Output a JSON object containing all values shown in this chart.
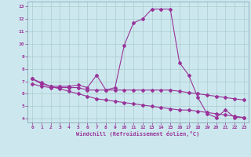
{
  "xlabel": "Windchill (Refroidissement éolien,°C)",
  "xlim": [
    -0.5,
    23.5
  ],
  "ylim": [
    3.7,
    13.4
  ],
  "yticks": [
    4,
    5,
    6,
    7,
    8,
    9,
    10,
    11,
    12,
    13
  ],
  "xticks": [
    0,
    1,
    2,
    3,
    4,
    5,
    6,
    7,
    8,
    9,
    10,
    11,
    12,
    13,
    14,
    15,
    16,
    17,
    18,
    19,
    20,
    21,
    22,
    23
  ],
  "bg_color": "#cce8ee",
  "line_color": "#993399",
  "grid_color": "#aacccc",
  "line1_x": [
    0,
    1,
    2,
    3,
    4,
    5,
    6,
    7,
    8,
    9,
    10,
    11,
    12,
    13,
    14,
    15,
    16,
    17,
    18,
    19,
    20,
    21,
    22,
    23
  ],
  "line1_y": [
    7.2,
    6.8,
    6.6,
    6.6,
    6.6,
    6.7,
    6.5,
    7.5,
    6.3,
    6.5,
    9.9,
    11.7,
    12.0,
    12.8,
    12.8,
    12.8,
    8.5,
    7.5,
    5.7,
    4.4,
    4.1,
    4.7,
    4.1,
    4.1
  ],
  "line2_x": [
    0,
    1,
    2,
    3,
    4,
    5,
    6,
    7,
    8,
    9,
    10,
    11,
    12,
    13,
    14,
    15,
    16,
    17,
    18,
    19,
    20,
    21,
    22,
    23
  ],
  "line2_y": [
    6.8,
    6.6,
    6.5,
    6.5,
    6.5,
    6.5,
    6.3,
    6.3,
    6.3,
    6.3,
    6.3,
    6.3,
    6.3,
    6.3,
    6.3,
    6.3,
    6.2,
    6.1,
    6.0,
    5.9,
    5.8,
    5.7,
    5.6,
    5.5
  ],
  "line3_x": [
    0,
    1,
    2,
    3,
    4,
    5,
    6,
    7,
    8,
    9,
    10,
    11,
    12,
    13,
    14,
    15,
    16,
    17,
    18,
    19,
    20,
    21,
    22,
    23
  ],
  "line3_y": [
    7.2,
    6.9,
    6.6,
    6.4,
    6.2,
    6.0,
    5.8,
    5.6,
    5.5,
    5.4,
    5.3,
    5.2,
    5.1,
    5.0,
    4.9,
    4.8,
    4.7,
    4.7,
    4.6,
    4.5,
    4.4,
    4.3,
    4.2,
    4.1
  ],
  "marker": "D",
  "markersize": 2.0,
  "linewidth": 0.8
}
